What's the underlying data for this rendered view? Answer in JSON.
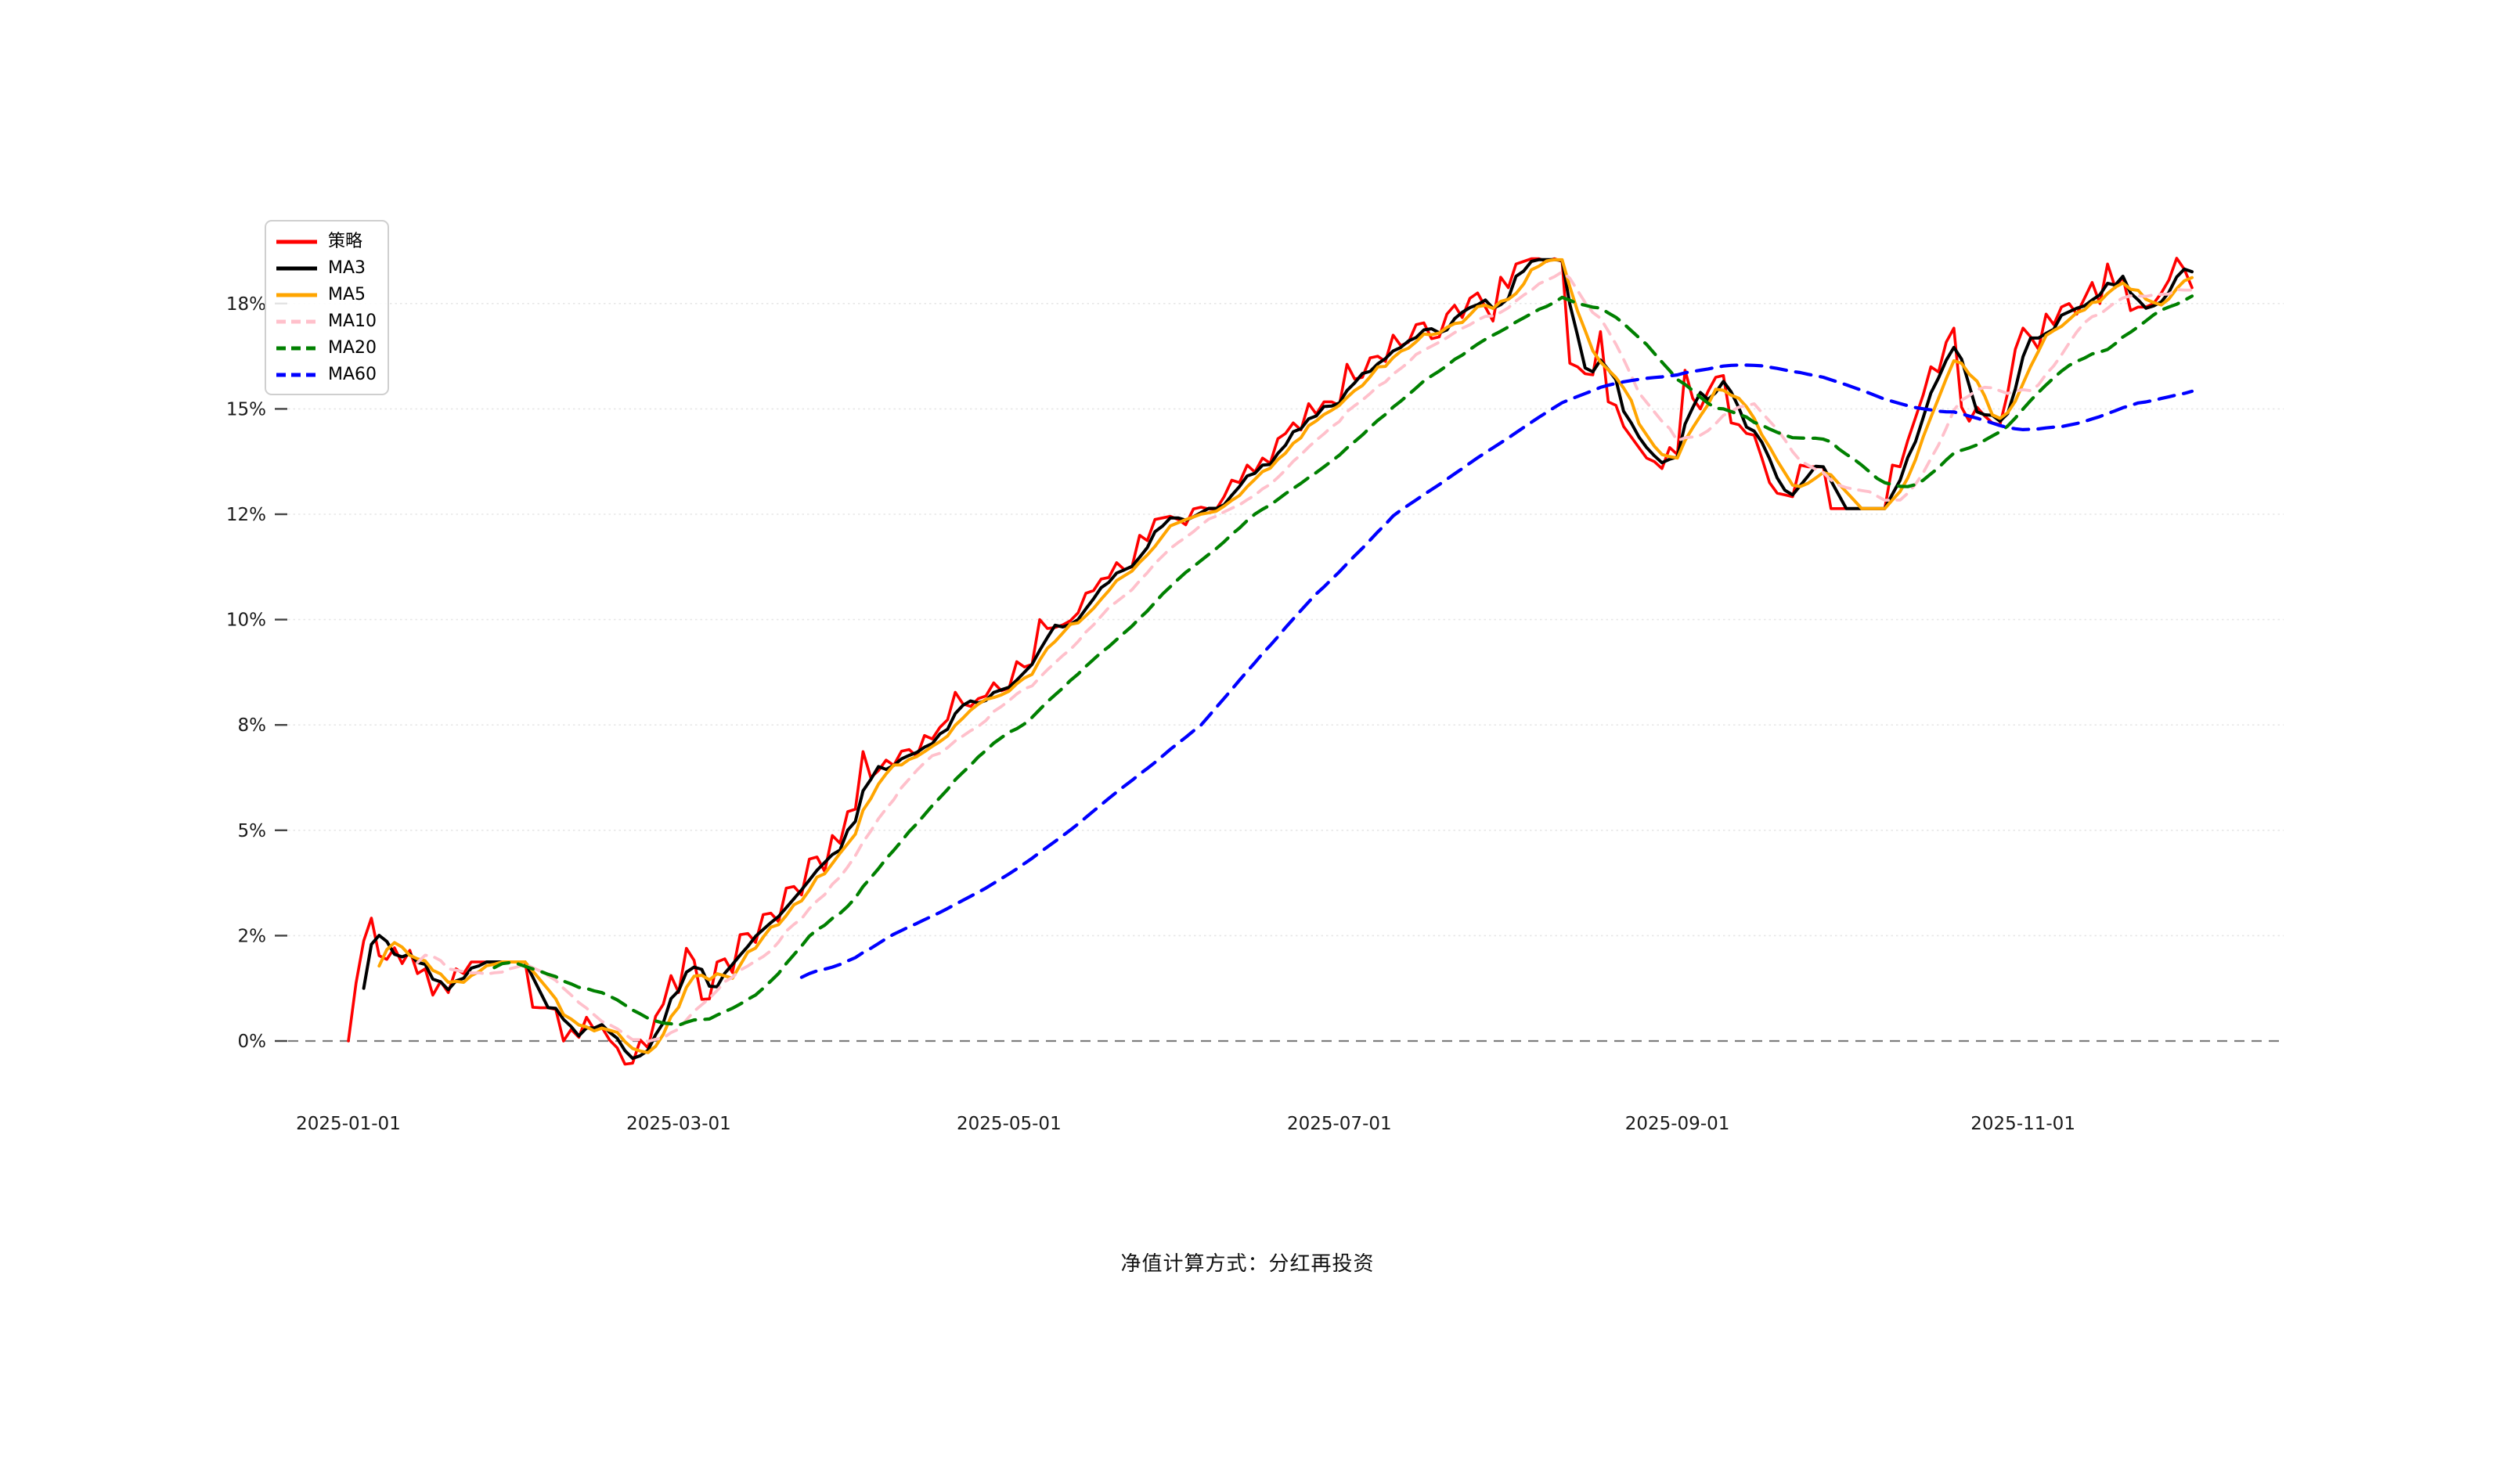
{
  "caption": "净值计算方式：分红再投资",
  "legend": {
    "items": [
      {
        "label": "策略",
        "color": "#ff0000",
        "dash": "solid"
      },
      {
        "label": "MA3",
        "color": "#000000",
        "dash": "solid"
      },
      {
        "label": "MA5",
        "color": "#ffa500",
        "dash": "solid"
      },
      {
        "label": "MA10",
        "color": "#ffc0cb",
        "dash": "dashed"
      },
      {
        "label": "MA20",
        "color": "#008000",
        "dash": "dashed"
      },
      {
        "label": "MA60",
        "color": "#0000ff",
        "dash": "dashed"
      }
    ]
  },
  "y_axis": {
    "tick_labels": [
      "0%",
      "2%",
      "5%",
      "8%",
      "10%",
      "12%",
      "15%",
      "18%"
    ],
    "tick_values": [
      0,
      2,
      5,
      8,
      10,
      12,
      15,
      18
    ],
    "unit": "%"
  },
  "x_axis": {
    "tick_dates": [
      "2025-01-01",
      "2025-03-01",
      "2025-05-01",
      "2025-07-01",
      "2025-09-01",
      "2025-11-01"
    ]
  },
  "colors": {
    "gridline": "#e7e7e7",
    "zero_line": "#7f7f7f",
    "tick_mark": "#444444",
    "label_text": "#1a1a1a"
  },
  "chart_data": {
    "type": "line",
    "title": "",
    "xlabel": "",
    "ylabel": "",
    "x_start_date": "2025-01-01",
    "x_end_date": "2025-12-03",
    "x_frequency": "weekdays",
    "ylim": [
      -1.2,
      19.6
    ],
    "grid": true,
    "legend_position": "upper left",
    "series": [
      {
        "name": "策略",
        "color": "#ff0000",
        "style": "solid",
        "width": 3.6,
        "values": [
          0.0,
          1.1,
          1.9,
          2.5,
          1.62,
          1.55,
          1.77,
          1.47,
          1.72,
          1.28,
          1.37,
          0.87,
          1.13,
          0.92,
          1.37,
          1.28,
          1.5,
          1.5,
          1.5,
          1.5,
          1.5,
          1.5,
          1.5,
          1.5,
          0.64,
          0.63,
          0.63,
          0.6,
          0.0,
          0.22,
          0.07,
          0.45,
          0.22,
          0.26,
          0.02,
          -0.13,
          -0.44,
          -0.42,
          0.02,
          -0.13,
          0.47,
          0.7,
          1.24,
          0.92,
          1.76,
          1.53,
          0.79,
          0.8,
          1.5,
          1.56,
          1.3,
          2.03,
          2.06,
          1.87,
          2.6,
          2.64,
          2.4,
          3.35,
          3.4,
          3.16,
          4.18,
          4.24,
          3.83,
          4.85,
          4.63,
          5.53,
          5.6,
          7.24,
          6.5,
          6.7,
          7.0,
          6.85,
          7.25,
          7.3,
          7.1,
          7.7,
          7.6,
          7.93,
          8.1,
          8.62,
          8.4,
          8.35,
          8.5,
          8.55,
          8.8,
          8.65,
          8.7,
          9.2,
          9.1,
          9.15,
          10.0,
          9.83,
          9.85,
          9.9,
          9.98,
          10.13,
          10.5,
          10.55,
          10.77,
          10.8,
          11.08,
          10.95,
          11.0,
          11.6,
          11.5,
          11.9,
          11.93,
          11.96,
          11.9,
          11.8,
          12.15,
          12.2,
          12.15,
          12.15,
          12.5,
          12.97,
          12.9,
          13.4,
          13.2,
          13.6,
          13.45,
          14.15,
          14.3,
          14.6,
          14.4,
          15.15,
          14.85,
          15.2,
          15.2,
          15.1,
          16.27,
          15.85,
          15.9,
          16.45,
          16.5,
          16.35,
          17.1,
          16.8,
          16.9,
          17.4,
          17.45,
          17.0,
          17.05,
          17.7,
          17.95,
          17.6,
          18.1,
          18.2,
          17.9,
          17.5,
          18.5,
          18.3,
          18.75,
          18.8,
          18.85,
          18.85,
          18.8,
          18.85,
          18.8,
          16.3,
          16.2,
          16.0,
          15.97,
          17.2,
          15.2,
          15.1,
          14.5,
          14.2,
          13.9,
          13.6,
          13.5,
          13.3,
          13.9,
          13.7,
          16.1,
          15.3,
          15.0,
          15.5,
          15.9,
          15.95,
          14.6,
          14.55,
          14.3,
          14.25,
          13.6,
          12.9,
          12.6,
          12.55,
          12.5,
          13.4,
          13.35,
          13.35,
          13.35,
          12.16,
          12.16,
          12.16,
          12.16,
          12.16,
          12.16,
          12.16,
          12.16,
          13.4,
          13.35,
          14.1,
          14.75,
          15.4,
          16.2,
          16.05,
          16.9,
          17.3,
          15.05,
          14.65,
          15.05,
          14.8,
          14.6,
          14.55,
          15.45,
          16.7,
          17.3,
          17.05,
          16.7,
          17.7,
          17.4,
          17.9,
          18.0,
          17.7,
          18.1,
          18.4,
          18.0,
          18.75,
          18.3,
          18.5,
          17.8,
          17.9,
          17.9,
          18.0,
          18.2,
          18.45,
          18.86,
          18.65,
          18.3
        ]
      },
      {
        "name": "MA3",
        "color": "#000000",
        "style": "solid",
        "width": 4.0,
        "derived": "moving_average",
        "window": 3
      },
      {
        "name": "MA5",
        "color": "#ffa500",
        "style": "solid",
        "width": 4.0,
        "derived": "moving_average",
        "window": 5
      },
      {
        "name": "MA10",
        "color": "#ffc0cb",
        "style": "dashed",
        "width": 3.8,
        "derived": "moving_average",
        "window": 10
      },
      {
        "name": "MA20",
        "color": "#008000",
        "style": "dashed",
        "width": 4.2,
        "derived": "moving_average",
        "window": 20
      },
      {
        "name": "MA60",
        "color": "#0000ff",
        "style": "dashed",
        "width": 4.2,
        "derived": "moving_average",
        "window": 60
      }
    ]
  }
}
